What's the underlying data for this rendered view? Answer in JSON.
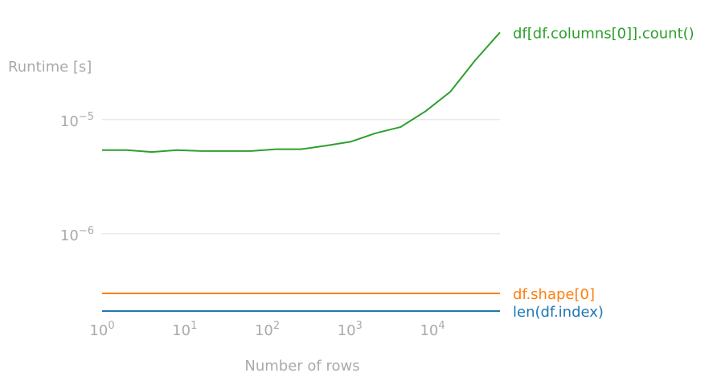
{
  "chart_data": {
    "type": "line",
    "title": "",
    "xlabel": "Number of rows",
    "ylabel": "Runtime [s]",
    "x_scale": "log",
    "y_scale": "log",
    "xlim": [
      1,
      65536
    ],
    "ylim": [
      2.1e-07,
      8.2e-05
    ],
    "grid": "horizontal",
    "legend": "inline labels at right end of lines",
    "x_ticks": [
      {
        "value": 1,
        "base": "10",
        "exp": "0"
      },
      {
        "value": 10,
        "base": "10",
        "exp": "1"
      },
      {
        "value": 100,
        "base": "10",
        "exp": "2"
      },
      {
        "value": 1000,
        "base": "10",
        "exp": "3"
      },
      {
        "value": 10000,
        "base": "10",
        "exp": "4"
      }
    ],
    "y_ticks": [
      {
        "value": 1e-05,
        "base": "10",
        "exp": "−5"
      },
      {
        "value": 1e-06,
        "base": "10",
        "exp": "−6"
      }
    ],
    "x": [
      1,
      2,
      4,
      8,
      16,
      32,
      64,
      128,
      256,
      512,
      1024,
      2048,
      4096,
      8192,
      16384,
      32768,
      65536
    ],
    "series": [
      {
        "name": "df[df.columns[0]].count()",
        "color": "#2ca02c",
        "values": [
          5.4e-06,
          5.4e-06,
          5.2e-06,
          5.4e-06,
          5.3e-06,
          5.3e-06,
          5.3e-06,
          5.5e-06,
          5.5e-06,
          5.9e-06,
          6.4e-06,
          7.6e-06,
          8.6e-06,
          1.18e-05,
          1.75e-05,
          3.3e-05,
          5.8e-05
        ]
      },
      {
        "name": "df.shape[0]",
        "color": "#ff7f0e",
        "values": [
          3e-07,
          3e-07,
          3e-07,
          3e-07,
          3e-07,
          3e-07,
          3e-07,
          3e-07,
          3e-07,
          3e-07,
          3e-07,
          3e-07,
          3e-07,
          3e-07,
          3e-07,
          3e-07,
          3e-07
        ]
      },
      {
        "name": "len(df.index)",
        "color": "#1f77b4",
        "values": [
          2.1e-07,
          2.1e-07,
          2.1e-07,
          2.1e-07,
          2.1e-07,
          2.1e-07,
          2.1e-07,
          2.1e-07,
          2.1e-07,
          2.1e-07,
          2.1e-07,
          2.1e-07,
          2.1e-07,
          2.1e-07,
          2.1e-07,
          2.1e-07,
          2.1e-07
        ]
      }
    ],
    "colors": {
      "axis_text": "#aaaaaa",
      "grid": "#e6e6e6"
    }
  }
}
